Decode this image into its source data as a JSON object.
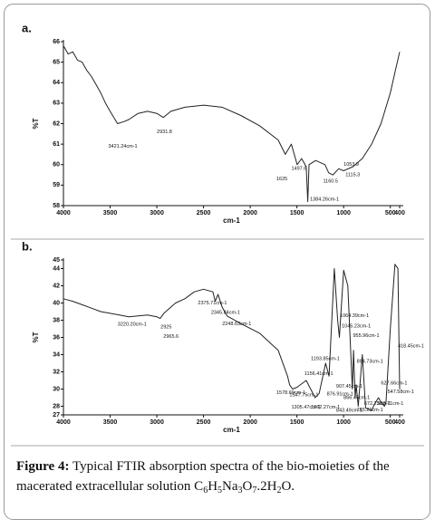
{
  "chart_data": [
    {
      "type": "line",
      "panel": "a.",
      "x_label": "cm-1",
      "y_label": "%T",
      "reversed_x": true,
      "xlim": [
        4000,
        400
      ],
      "ylim": [
        58,
        66
      ],
      "xticks": [
        4000,
        3500,
        3000,
        2500,
        2000,
        1500,
        1000,
        500,
        400
      ],
      "yticks": [
        58,
        59,
        60,
        61,
        62,
        63,
        64,
        65,
        66
      ],
      "series": [
        {
          "color": "#222222",
          "x": [
            4000,
            3950,
            3900,
            3850,
            3800,
            3750,
            3700,
            3650,
            3600,
            3550,
            3500,
            3421,
            3350,
            3300,
            3200,
            3100,
            3000,
            2931,
            2850,
            2700,
            2500,
            2300,
            2100,
            1900,
            1700,
            1625,
            1560,
            1497,
            1450,
            1400,
            1384,
            1370,
            1300,
            1200,
            1160,
            1115,
            1053,
            1000,
            900,
            800,
            700,
            600,
            500,
            450,
            400
          ],
          "values": [
            65.8,
            65.4,
            65.5,
            65.1,
            65.0,
            64.6,
            64.3,
            63.9,
            63.5,
            63.0,
            62.6,
            62.0,
            62.1,
            62.2,
            62.5,
            62.6,
            62.5,
            62.3,
            62.6,
            62.8,
            62.9,
            62.8,
            62.4,
            61.9,
            61.2,
            60.5,
            61.0,
            60.0,
            60.3,
            59.9,
            58.2,
            60.0,
            60.2,
            60.0,
            59.6,
            59.5,
            59.8,
            59.7,
            59.9,
            60.3,
            61.0,
            62.0,
            63.5,
            64.5,
            65.5
          ]
        }
      ],
      "annotations": [
        {
          "text": "3421.24cm-1",
          "x": 3520,
          "y": 60.9
        },
        {
          "text": "2931.8",
          "x": 3000,
          "y": 61.6
        },
        {
          "text": "1625",
          "x": 1720,
          "y": 59.3
        },
        {
          "text": "1497.6",
          "x": 1560,
          "y": 59.8
        },
        {
          "text": "1160.5",
          "x": 1220,
          "y": 59.2
        },
        {
          "text": "1053.9",
          "x": 1000,
          "y": 60.0
        },
        {
          "text": "1115.3",
          "x": 980,
          "y": 59.5
        },
        {
          "text": "1384.26cm-1",
          "x": 1360,
          "y": 58.3
        }
      ]
    },
    {
      "type": "line",
      "panel": "b.",
      "x_label": "cm-1",
      "y_label": "%T",
      "reversed_x": true,
      "xlim": [
        4000,
        400
      ],
      "ylim": [
        27,
        45
      ],
      "xticks": [
        4000,
        3500,
        3000,
        2500,
        2000,
        1500,
        1000,
        500,
        400
      ],
      "yticks": [
        27,
        28,
        30,
        32,
        34,
        36,
        38,
        40,
        42,
        44,
        45
      ],
      "series": [
        {
          "color": "#222222",
          "x": [
            4000,
            3900,
            3800,
            3700,
            3600,
            3500,
            3400,
            3300,
            3200,
            3100,
            3000,
            2965,
            2925,
            2800,
            2700,
            2600,
            2500,
            2400,
            2375,
            2345,
            2300,
            2248,
            2100,
            1900,
            1700,
            1600,
            1578,
            1547,
            1500,
            1400,
            1305,
            1262,
            1193,
            1156,
            1100,
            1064,
            1045,
            1000,
            955,
            907,
            894,
            876,
            866,
            843,
            800,
            765,
            700,
            672,
            627,
            600,
            563,
            547,
            500,
            450,
            418,
            400
          ],
          "values": [
            40.5,
            40.2,
            39.8,
            39.4,
            39.0,
            38.8,
            38.6,
            38.4,
            38.5,
            38.6,
            38.4,
            38.2,
            38.8,
            40.0,
            40.5,
            41.3,
            41.6,
            41.3,
            40.2,
            41.0,
            39.5,
            38.5,
            37.6,
            36.5,
            34.5,
            31.5,
            30.5,
            30.0,
            30.2,
            31.0,
            29.0,
            29.5,
            33.0,
            31.5,
            44.0,
            38.0,
            36.0,
            43.8,
            42.0,
            30.0,
            34.5,
            29.0,
            30.5,
            28.0,
            34.0,
            27.8,
            27.5,
            28.2,
            29.0,
            28.5,
            28.0,
            28.4,
            37.0,
            44.5,
            44.0,
            30.0
          ]
        }
      ],
      "annotations": [
        {
          "text": "3220.20cm-1",
          "x": 3420,
          "y": 37.5
        },
        {
          "text": "2925",
          "x": 2960,
          "y": 37.2
        },
        {
          "text": "2965.6",
          "x": 2930,
          "y": 36.1
        },
        {
          "text": "2375.71cm-1",
          "x": 2560,
          "y": 40.0
        },
        {
          "text": "2345.84cm-1",
          "x": 2420,
          "y": 38.9
        },
        {
          "text": "2248.63cm-1",
          "x": 2300,
          "y": 37.6
        },
        {
          "text": "1193.85cm-1",
          "x": 1350,
          "y": 33.5
        },
        {
          "text": "1156.41cm-1",
          "x": 1420,
          "y": 31.8
        },
        {
          "text": "1064.39cm-1",
          "x": 1040,
          "y": 38.5
        },
        {
          "text": "1045.23cm-1",
          "x": 1020,
          "y": 37.3
        },
        {
          "text": "955.96cm-1",
          "x": 900,
          "y": 36.2
        },
        {
          "text": "894.73cm-1",
          "x": 860,
          "y": 33.2
        },
        {
          "text": "418.45cm-1",
          "x": 420,
          "y": 35.0
        },
        {
          "text": "627.66cm-1",
          "x": 600,
          "y": 30.7
        },
        {
          "text": "547.58cm-1",
          "x": 530,
          "y": 29.7
        },
        {
          "text": "907.45cm-1",
          "x": 1080,
          "y": 30.3
        },
        {
          "text": "876.91cm-1",
          "x": 1180,
          "y": 29.4
        },
        {
          "text": "866.45cm-1",
          "x": 1000,
          "y": 29.0
        },
        {
          "text": "1578.69cm-1",
          "x": 1720,
          "y": 29.6
        },
        {
          "text": "1547.75cm-1",
          "x": 1580,
          "y": 29.3
        },
        {
          "text": "1305.47cm-1",
          "x": 1560,
          "y": 27.9
        },
        {
          "text": "1262.27cm-1",
          "x": 1350,
          "y": 27.9
        },
        {
          "text": "843.49cm-1",
          "x": 1080,
          "y": 27.5
        },
        {
          "text": "765.26cm-1",
          "x": 860,
          "y": 27.6
        },
        {
          "text": "672.23cm-1",
          "x": 780,
          "y": 28.3
        },
        {
          "text": "563.71cm-1",
          "x": 640,
          "y": 28.3
        }
      ]
    }
  ],
  "caption": {
    "label": "Figure 4:",
    "text": " Typical FTIR absorption spectra of the bio-moieties of the",
    "line2": "macerated extracellular solution ",
    "formula": [
      "C",
      "6",
      "H",
      "5",
      "Na",
      "3",
      "O",
      "7",
      ".2H",
      "2",
      "O."
    ]
  }
}
